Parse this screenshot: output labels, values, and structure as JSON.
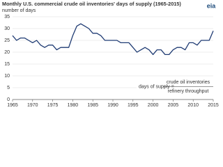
{
  "chart_data": {
    "type": "line",
    "title": "Monthly U.S. commercial crude oil inventories' days of supply (1965-2015)",
    "y_label": "number of days",
    "logo": "eia",
    "annotation": {
      "lhs": "days of supply =",
      "numerator": "crude oil inventories",
      "denominator": "refinery throughput"
    },
    "x": [
      1965,
      1966,
      1967,
      1968,
      1969,
      1970,
      1971,
      1972,
      1973,
      1974,
      1975,
      1976,
      1977,
      1978,
      1979,
      1980,
      1981,
      1982,
      1983,
      1984,
      1985,
      1986,
      1987,
      1988,
      1989,
      1990,
      1991,
      1992,
      1993,
      1994,
      1995,
      1996,
      1997,
      1998,
      1999,
      2000,
      2001,
      2002,
      2003,
      2004,
      2005,
      2006,
      2007,
      2008,
      2009,
      2010,
      2011,
      2012,
      2013,
      2014,
      2015
    ],
    "values": [
      27,
      25,
      26,
      26,
      25,
      24,
      25,
      23,
      22,
      23,
      23,
      21,
      22,
      22,
      22,
      27,
      31,
      32,
      31,
      30,
      28,
      28,
      27,
      25,
      25,
      25,
      25,
      24,
      24,
      24,
      22,
      20,
      21,
      22,
      21,
      19,
      21,
      21,
      19,
      19,
      21,
      22,
      22,
      21,
      24,
      24,
      23,
      25,
      25,
      25,
      29
    ],
    "color": "#1f3b73",
    "xlim": [
      1965,
      2015
    ],
    "xticks": [
      1965,
      1970,
      1975,
      1980,
      1985,
      1990,
      1995,
      2000,
      2005,
      2010,
      2015
    ],
    "ylim": [
      0,
      35
    ],
    "yticks": [
      0,
      5,
      10,
      15,
      20,
      25,
      30,
      35
    ],
    "grid": true
  }
}
